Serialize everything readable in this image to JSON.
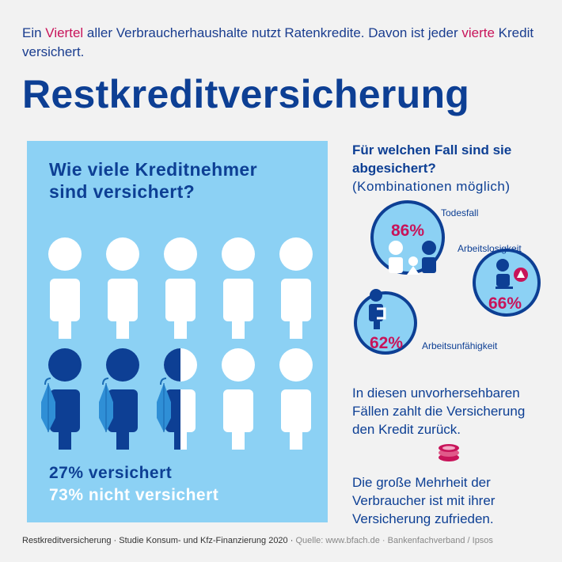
{
  "intro": {
    "part1": "Ein ",
    "hl1": "Viertel",
    "part2": " aller Verbraucherhaushalte nutzt Ratenkredite. Davon ist jeder ",
    "hl2": "vierte",
    "part3": " Kredit versichert."
  },
  "title": "Restkreditversicherung",
  "panel": {
    "question_line1": "Wie viele Kreditnehmer",
    "question_line2": "sind versichert?",
    "stat_insured": "27% versichert",
    "stat_not_insured": "73% nicht versichert",
    "figures_total": 10,
    "figures_insured": 2.5
  },
  "coverage": {
    "question_line1": "Für welchen Fall sind sie",
    "question_line2": "abgesichert?",
    "question_note": "(Kombinationen möglich)",
    "cases": [
      {
        "label": "Todesfall",
        "value": "86%"
      },
      {
        "label": "Arbeitslosigkeit",
        "value": "66%"
      },
      {
        "label": "Arbeitsunfähigkeit",
        "value": "62%"
      }
    ]
  },
  "info": {
    "para1": "In diesen unvorhersehbaren Fällen zahlt die Versicherung den Kredit zurück.",
    "para2": "Die große Mehrheit der Verbraucher ist mit ihrer Versicherung zufrieden."
  },
  "footer": {
    "text": "Restkreditversicherung · Studie Konsum- und Kfz-Finanzierung 2020 · ",
    "source": "Quelle: www.bfach.de · Bankenfachverband / Ipsos"
  },
  "colors": {
    "dark_blue": "#0d3f94",
    "light_blue": "#8cd1f4",
    "accent_pink": "#c8145a",
    "umbrella_blue": "#2f8fd6"
  }
}
